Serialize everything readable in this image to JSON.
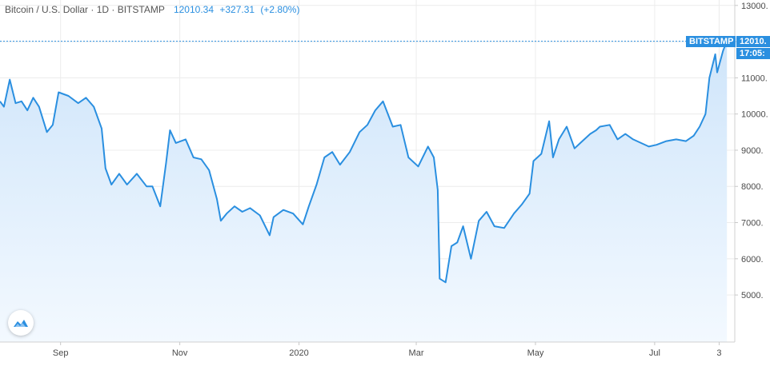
{
  "header": {
    "symbol": "Bitcoin / U.S. Dollar · 1D · BITSTAMP",
    "last": "12010.34",
    "change": "+327.31",
    "change_pct": "(+2.80%)"
  },
  "price_tag": {
    "exchange": "BITSTAMP",
    "price": "12010.",
    "countdown": "17:05:"
  },
  "colors": {
    "line": "#2a8fe0",
    "tag_bg": "#2a8fe0",
    "area_top": "#cfe5fa",
    "area_bottom": "#f3f9ff",
    "grid": "#ececec"
  },
  "logo_icon": "tradingview-logo-icon",
  "chart_data": {
    "type": "area",
    "x_tick_labels": [
      "Sep",
      "Nov",
      "2020",
      "Mar",
      "May",
      "Jul",
      "3"
    ],
    "y_tick_labels": [
      "13000.",
      "12000.",
      "11000.",
      "10000.",
      "9000.",
      "8000.",
      "7000.",
      "6000.",
      "5000."
    ],
    "y_ticks": [
      13000,
      12000,
      11000,
      10000,
      9000,
      8000,
      7000,
      6000,
      5000
    ],
    "ylim": [
      3700,
      13150
    ],
    "xlim": [
      "2019-08-01",
      "2020-08-11"
    ],
    "last_value": 12010.34,
    "grid": true,
    "axis_position": "right",
    "series": [
      {
        "x": [
          "2019-08-01",
          "2019-08-03",
          "2019-08-06",
          "2019-08-09",
          "2019-08-12",
          "2019-08-15",
          "2019-08-18",
          "2019-08-21",
          "2019-08-25",
          "2019-08-28",
          "2019-08-31",
          "2019-09-05",
          "2019-09-10",
          "2019-09-14",
          "2019-09-18",
          "2019-09-22",
          "2019-09-24",
          "2019-09-27",
          "2019-10-01",
          "2019-10-05",
          "2019-10-10",
          "2019-10-15",
          "2019-10-18",
          "2019-10-22",
          "2019-10-25",
          "2019-10-27",
          "2019-10-30",
          "2019-11-04",
          "2019-11-08",
          "2019-11-12",
          "2019-11-16",
          "2019-11-20",
          "2019-11-22",
          "2019-11-25",
          "2019-11-29",
          "2019-12-03",
          "2019-12-07",
          "2019-12-12",
          "2019-12-17",
          "2019-12-19",
          "2019-12-24",
          "2019-12-29",
          "2020-01-03",
          "2020-01-06",
          "2020-01-10",
          "2020-01-14",
          "2020-01-18",
          "2020-01-22",
          "2020-01-27",
          "2020-02-01",
          "2020-02-05",
          "2020-02-09",
          "2020-02-13",
          "2020-02-18",
          "2020-02-22",
          "2020-02-26",
          "2020-03-02",
          "2020-03-07",
          "2020-03-10",
          "2020-03-12",
          "2020-03-13",
          "2020-03-16",
          "2020-03-19",
          "2020-03-22",
          "2020-03-25",
          "2020-03-29",
          "2020-04-02",
          "2020-04-06",
          "2020-04-10",
          "2020-04-15",
          "2020-04-20",
          "2020-04-24",
          "2020-04-28",
          "2020-04-30",
          "2020-05-04",
          "2020-05-08",
          "2020-05-10",
          "2020-05-13",
          "2020-05-17",
          "2020-05-21",
          "2020-05-24",
          "2020-05-29",
          "2020-06-01",
          "2020-06-03",
          "2020-06-08",
          "2020-06-12",
          "2020-06-16",
          "2020-06-20",
          "2020-06-24",
          "2020-06-28",
          "2020-07-02",
          "2020-07-07",
          "2020-07-12",
          "2020-07-17",
          "2020-07-21",
          "2020-07-24",
          "2020-07-27",
          "2020-07-29",
          "2020-08-01",
          "2020-08-02",
          "2020-08-05",
          "2020-08-07"
        ],
        "values": [
          10350,
          10200,
          10950,
          10300,
          10350,
          10100,
          10450,
          10200,
          9500,
          9700,
          10600,
          10500,
          10300,
          10450,
          10200,
          9600,
          8500,
          8050,
          8350,
          8050,
          8350,
          8000,
          8000,
          7450,
          8650,
          9550,
          9200,
          9300,
          8800,
          8750,
          8450,
          7650,
          7050,
          7250,
          7450,
          7300,
          7400,
          7200,
          6650,
          7150,
          7350,
          7250,
          6950,
          7450,
          8050,
          8800,
          8950,
          8600,
          8950,
          9500,
          9700,
          10100,
          10350,
          9650,
          9700,
          8800,
          8550,
          9100,
          8800,
          7900,
          5450,
          5350,
          6350,
          6450,
          6900,
          6000,
          7050,
          7300,
          6900,
          6850,
          7250,
          7500,
          7800,
          8700,
          8900,
          9800,
          8800,
          9300,
          9650,
          9050,
          9200,
          9450,
          9550,
          9650,
          9700,
          9300,
          9450,
          9300,
          9200,
          9100,
          9150,
          9250,
          9300,
          9250,
          9400,
          9650,
          10000,
          11000,
          11650,
          11150,
          11750,
          12010
        ]
      }
    ]
  }
}
